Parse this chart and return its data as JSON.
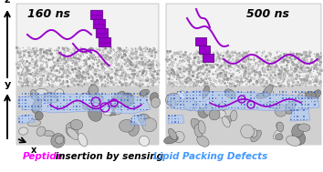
{
  "background_color": "#ffffff",
  "caption_parts": [
    {
      "text": "Peptide",
      "color": "#ff00ff"
    },
    {
      "text": " insertion by sensing ",
      "color": "#000000"
    },
    {
      "text": "Lipid Packing Defects",
      "color": "#4499ff"
    }
  ],
  "label_160": "160 ns",
  "label_500": "500 ns",
  "label_z": "z",
  "label_y": "y",
  "label_x": "x",
  "peptide_color": "#9900cc",
  "panel_bg": "#e8e8e8",
  "membrane_side_color": "#c8c8c8",
  "membrane_top_color": "#a0a0a0",
  "defect_blue": "#5577ff",
  "defect_blue_fill": "#aabbff"
}
